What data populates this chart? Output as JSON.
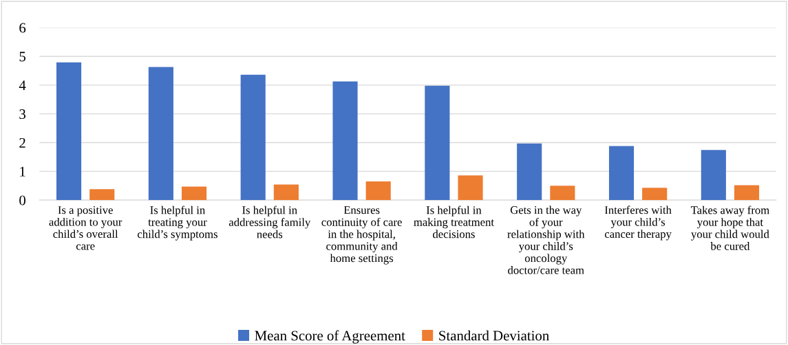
{
  "chart_data": {
    "type": "bar",
    "categories": [
      "Is a positive\naddition to your\nchild’s overall\ncare",
      "Is helpful in\ntreating your\nchild’s symptoms",
      "Is helpful in\naddressing family\nneeds",
      "Ensures\ncontinuity of care\nin the hospital,\ncommunity and\nhome settings",
      "Is helpful in\nmaking treatment\ndecisions",
      "Gets in the way\nof your\nrelationship with\nyour child’s\noncology\ndoctor/care team",
      "Interferes with\nyour child’s\ncancer therapy",
      "Takes away from\nyour hope that\nyour child would\nbe cured"
    ],
    "series": [
      {
        "name": "Mean Score of Agreement",
        "color": "#4472c4",
        "values": [
          4.79,
          4.63,
          4.36,
          4.13,
          3.98,
          1.97,
          1.88,
          1.74
        ]
      },
      {
        "name": "Standard Deviation",
        "color": "#ed7d31",
        "values": [
          0.38,
          0.47,
          0.54,
          0.65,
          0.86,
          0.5,
          0.43,
          0.52
        ]
      }
    ],
    "ylim": [
      0,
      6
    ],
    "yticks": [
      0,
      1,
      2,
      3,
      4,
      5,
      6
    ],
    "grid": "y",
    "legend": "bottom"
  }
}
